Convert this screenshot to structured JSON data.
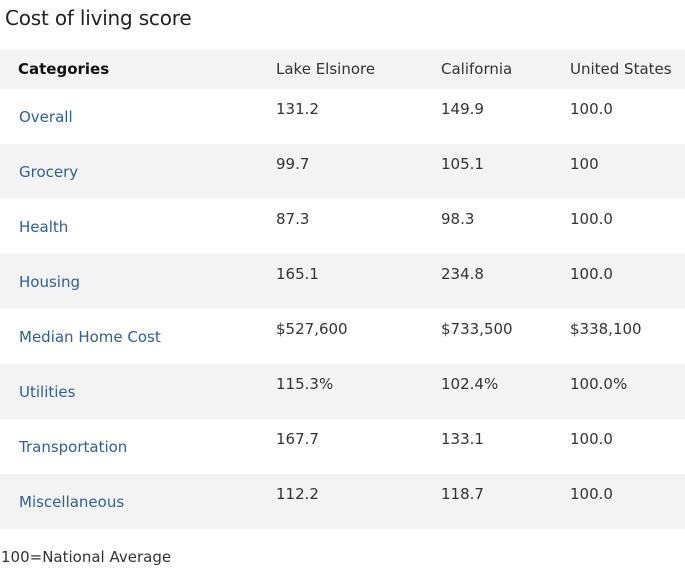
{
  "title": "Cost of living score",
  "table": {
    "headers": [
      "Categories",
      "Lake Elsinore",
      "California",
      "United States"
    ],
    "rows": [
      {
        "category": "Overall",
        "values": [
          "131.2",
          "149.9",
          "100.0"
        ]
      },
      {
        "category": "Grocery",
        "values": [
          "99.7",
          "105.1",
          "100"
        ]
      },
      {
        "category": "Health",
        "values": [
          "87.3",
          "98.3",
          "100.0"
        ]
      },
      {
        "category": "Housing",
        "values": [
          "165.1",
          "234.8",
          "100.0"
        ]
      },
      {
        "category": "Median Home Cost",
        "values": [
          "$527,600",
          "$733,500",
          "$338,100"
        ]
      },
      {
        "category": "Utilities",
        "values": [
          "115.3%",
          "102.4%",
          "100.0%"
        ]
      },
      {
        "category": "Transportation",
        "values": [
          "167.7",
          "133.1",
          "100.0"
        ]
      },
      {
        "category": "Miscellaneous",
        "values": [
          "112.2",
          "118.7",
          "100.0"
        ]
      }
    ]
  },
  "footnote": "100=National Average",
  "colors": {
    "category_link": "#2f5f95",
    "stripe_background": "#f3f3f3",
    "text": "#333333"
  }
}
